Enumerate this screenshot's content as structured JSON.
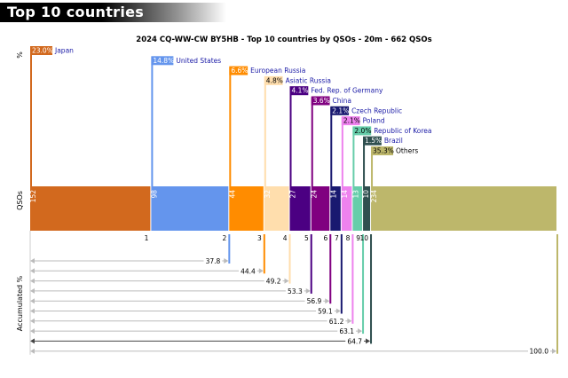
{
  "header": {
    "title": "Top 10 countries"
  },
  "chart_data": {
    "type": "bar",
    "title": "2024 CQ-WW-CW BY5HB - Top 10 countries by QSOs - 20m - 662 QSOs",
    "labels": {
      "percent_axis": "%",
      "qsos_axis": "QSOs",
      "accumulated_axis": "Accumulated %"
    },
    "items": [
      {
        "rank": "1",
        "country": "Japan",
        "qsos": 152,
        "percent": "23.0%",
        "accumulated": "",
        "color": "#d2691e"
      },
      {
        "rank": "2",
        "country": "United States",
        "qsos": 98,
        "percent": "14.8%",
        "accumulated": "37.8",
        "color": "#6495ed"
      },
      {
        "rank": "3",
        "country": "European Russia",
        "qsos": 44,
        "percent": "6.6%",
        "accumulated": "44.4",
        "color": "#ff8c00"
      },
      {
        "rank": "4",
        "country": "Asiatic Russia",
        "qsos": 32,
        "percent": "4.8%",
        "accumulated": "49.2",
        "color": "#ffdead"
      },
      {
        "rank": "5",
        "country": "Fed. Rep. of Germany",
        "qsos": 27,
        "percent": "4.1%",
        "accumulated": "53.3",
        "color": "#4b0082"
      },
      {
        "rank": "6",
        "country": "China",
        "qsos": 24,
        "percent": "3.6%",
        "accumulated": "56.9",
        "color": "#800080"
      },
      {
        "rank": "7",
        "country": "Czech Republic",
        "qsos": 14,
        "percent": "2.1%",
        "accumulated": "59.1",
        "color": "#191970"
      },
      {
        "rank": "8",
        "country": "Poland",
        "qsos": 14,
        "percent": "2.1%",
        "accumulated": "61.2",
        "color": "#ee82ee"
      },
      {
        "rank": "9",
        "country": "Republic of Korea",
        "qsos": 13,
        "percent": "2.0%",
        "accumulated": "63.1",
        "color": "#66cdaa"
      },
      {
        "rank": "10",
        "country": "Brazil",
        "qsos": 10,
        "percent": "1.5%",
        "accumulated": "64.7",
        "color": "#2f4f4f"
      },
      {
        "rank": "",
        "country": "Others",
        "qsos": 234,
        "percent": "35.3%",
        "accumulated": "100.0",
        "color": "#bdb76b"
      }
    ]
  }
}
